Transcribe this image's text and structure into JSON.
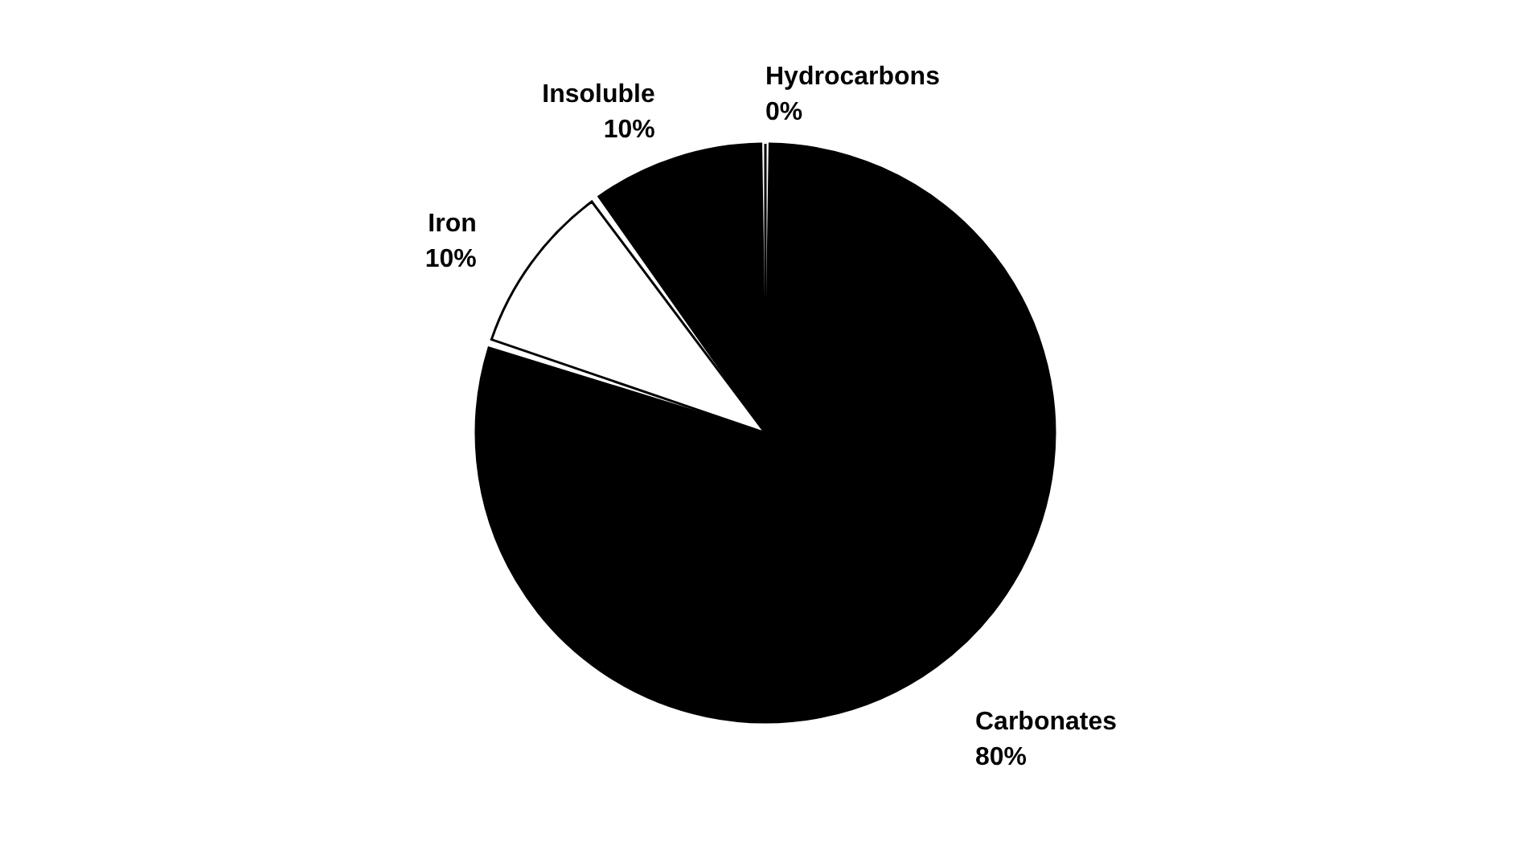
{
  "chart_data": {
    "type": "pie",
    "categories": [
      "Carbonates",
      "Iron",
      "Insoluble",
      "Hydrocarbons"
    ],
    "values": [
      80,
      10,
      10,
      0
    ],
    "value_labels": [
      "80%",
      "10%",
      "10%",
      "0%"
    ],
    "colors": [
      "#000000",
      "#ffffff",
      "#000000",
      "#000000"
    ]
  }
}
